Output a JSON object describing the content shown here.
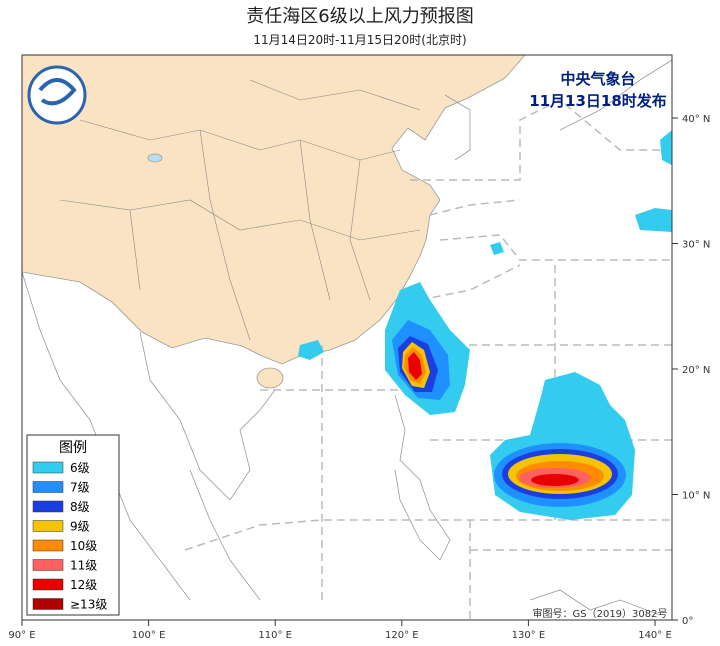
{
  "header": {
    "title": "责任海区6级以上风力预报图",
    "subtitle": "11月14日20时-11月15日20时(北京时)"
  },
  "issuer": {
    "name": "中央气象台",
    "issued": "11月13日18时发布"
  },
  "legend": {
    "title": "图例",
    "items": [
      {
        "label": "6级",
        "color": "#33ccee"
      },
      {
        "label": "7级",
        "color": "#1e90ff"
      },
      {
        "label": "8级",
        "color": "#1a3fe0"
      },
      {
        "label": "9级",
        "color": "#f5c400"
      },
      {
        "label": "10级",
        "color": "#ff8c00"
      },
      {
        "label": "11级",
        "color": "#ff6060"
      },
      {
        "label": "12级",
        "color": "#e80000"
      },
      {
        "label": "≥13级",
        "color": "#b00000"
      }
    ]
  },
  "axes": {
    "lon_labels": [
      "90° E",
      "100° E",
      "110° E",
      "120° E",
      "130° E",
      "140° E"
    ],
    "lat_labels": [
      "40° N",
      "30° N",
      "20° N",
      "10° N",
      "0°"
    ]
  },
  "footer": {
    "approval": "审图号：GS（2019）3082号"
  }
}
